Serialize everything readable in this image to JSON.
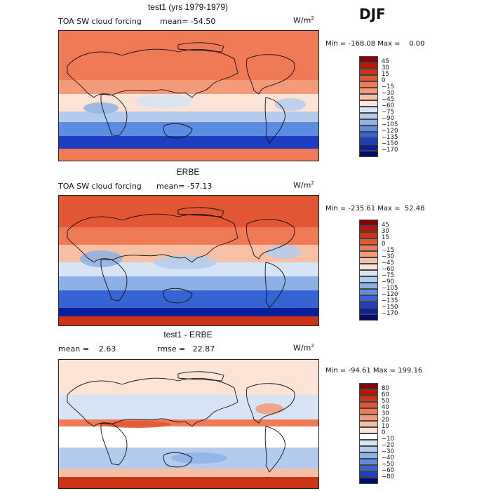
{
  "season": "DJF",
  "panels": [
    {
      "title": "test1 (yrs 1979-1979)",
      "left_label": "TOA SW cloud forcing",
      "mean_label": "mean= -54.50",
      "units_main": "W/m",
      "units_exp": "2",
      "minmax": "Min = -168.08 Max =    0.00",
      "colorbar_labels": [
        "45",
        "30",
        "15",
        "0",
        "−15",
        "−30",
        "−45",
        "−60",
        "−75",
        "−90",
        "−105",
        "−120",
        "−135",
        "−150",
        "−170"
      ],
      "colorbar_colors": [
        "#8b0000",
        "#b5170b",
        "#cc3417",
        "#e25634",
        "#ef7a56",
        "#f39a78",
        "#f7bfa4",
        "#fbe3d5",
        "#d6e4f5",
        "#b3ccee",
        "#8cb1e6",
        "#5c8de0",
        "#3764d3",
        "#1d3ec0",
        "#0a1f9c",
        "#000c6a"
      ]
    },
    {
      "title": "ERBE",
      "left_label": "TOA SW cloud forcing",
      "mean_label": "mean= -57.13",
      "units_main": "W/m",
      "units_exp": "2",
      "minmax": "Min = -235.61 Max =  52.48",
      "colorbar_labels": [
        "45",
        "30",
        "15",
        "0",
        "−15",
        "−30",
        "−45",
        "−60",
        "−75",
        "−90",
        "−105",
        "−120",
        "−135",
        "−150",
        "−170"
      ],
      "colorbar_colors": [
        "#8b0000",
        "#b5170b",
        "#cc3417",
        "#e25634",
        "#ef7a56",
        "#f39a78",
        "#f7bfa4",
        "#fbe3d5",
        "#d6e4f5",
        "#b3ccee",
        "#8cb1e6",
        "#5c8de0",
        "#3764d3",
        "#1d3ec0",
        "#0a1f9c",
        "#000c6a"
      ]
    },
    {
      "title": "test1 - ERBE",
      "left_label": "mean =    2.63",
      "mean_label": "rmse =   22.87",
      "units_main": "W/m",
      "units_exp": "2",
      "minmax": "Min = -94.61 Max = 199.16",
      "colorbar_labels": [
        "80",
        "60",
        "50",
        "40",
        "30",
        "20",
        "10",
        "0",
        "−10",
        "−20",
        "−30",
        "−40",
        "−50",
        "−60",
        "−80"
      ],
      "colorbar_colors": [
        "#8b0000",
        "#b5170b",
        "#cc3417",
        "#e25634",
        "#ef7a56",
        "#f39a78",
        "#f7bfa4",
        "#fbe3d5",
        "#ffffff",
        "#d6e4f5",
        "#b3ccee",
        "#8cb1e6",
        "#5c8de0",
        "#3764d3",
        "#1d3ec0",
        "#000c6a"
      ]
    }
  ]
}
